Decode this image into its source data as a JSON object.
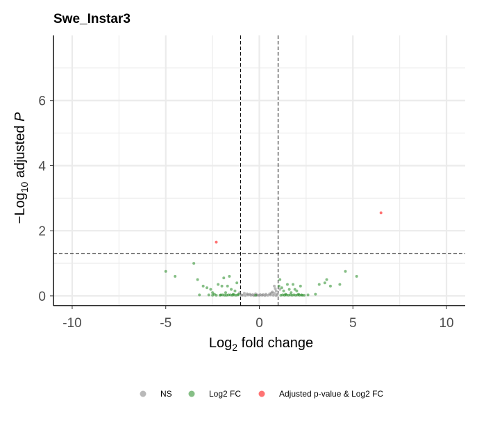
{
  "chart_data": {
    "type": "scatter",
    "title": "Swe_Instar3",
    "xlabel_parts": [
      "Log",
      "2",
      " fold change"
    ],
    "ylabel_parts": [
      "−Log",
      "10",
      " adjusted ",
      "P"
    ],
    "xlim": [
      -11,
      11
    ],
    "ylim": [
      -0.3,
      8.0
    ],
    "x_ticks": [
      -10,
      -5,
      0,
      5,
      10
    ],
    "x_tick_labels": [
      "-10",
      "-5",
      "0",
      "5",
      "10"
    ],
    "y_ticks": [
      0,
      2,
      4,
      6
    ],
    "y_tick_labels": [
      "0",
      "2",
      "4",
      "6"
    ],
    "grid": true,
    "fc_cutoff": 1,
    "p_cutoff_line": 1.3,
    "legend_position": "bottom",
    "series": [
      {
        "name": "NS",
        "color": "#808080",
        "points": [
          [
            -0.9,
            0.02
          ],
          [
            -0.75,
            0.01
          ],
          [
            -0.6,
            0.03
          ],
          [
            -0.45,
            0.02
          ],
          [
            -0.3,
            0.01
          ],
          [
            -0.15,
            0.02
          ],
          [
            0.0,
            0.01
          ],
          [
            0.15,
            0.02
          ],
          [
            0.3,
            0.01
          ],
          [
            0.45,
            0.02
          ],
          [
            0.6,
            0.03
          ],
          [
            0.75,
            0.02
          ],
          [
            0.9,
            0.01
          ],
          [
            -0.5,
            0.05
          ],
          [
            0.2,
            0.04
          ],
          [
            -0.2,
            0.06
          ],
          [
            0.8,
            0.3
          ],
          [
            0.85,
            0.22
          ],
          [
            0.9,
            0.15
          ],
          [
            0.7,
            0.12
          ],
          [
            -0.8,
            0.08
          ],
          [
            -0.35,
            0.04
          ],
          [
            0.55,
            0.06
          ],
          [
            0.35,
            0.05
          ],
          [
            -0.65,
            0.06
          ],
          [
            0.65,
            0.09
          ],
          [
            -0.95,
            0.03
          ],
          [
            0.95,
            0.05
          ],
          [
            -1.05,
            0.1
          ],
          [
            1.1,
            0.2
          ],
          [
            0.8,
            0.08
          ],
          [
            -0.1,
            0.03
          ],
          [
            0.05,
            0.04
          ]
        ]
      },
      {
        "name": "Log2 FC",
        "color": "#228B22",
        "points": [
          [
            -5.0,
            0.75
          ],
          [
            -4.5,
            0.6
          ],
          [
            -3.5,
            1.0
          ],
          [
            -3.3,
            0.5
          ],
          [
            -3.0,
            0.3
          ],
          [
            -2.8,
            0.25
          ],
          [
            -2.6,
            0.2
          ],
          [
            -2.5,
            0.1
          ],
          [
            -2.4,
            0.05
          ],
          [
            -2.2,
            0.35
          ],
          [
            -2.0,
            0.3
          ],
          [
            -1.9,
            0.55
          ],
          [
            -1.8,
            0.1
          ],
          [
            -1.7,
            0.3
          ],
          [
            -1.6,
            0.6
          ],
          [
            -1.5,
            0.2
          ],
          [
            -1.4,
            0.05
          ],
          [
            -1.3,
            0.15
          ],
          [
            -1.2,
            0.4
          ],
          [
            -1.1,
            0.05
          ],
          [
            -2.3,
            0.02
          ],
          [
            -2.1,
            0.02
          ],
          [
            -1.95,
            0.03
          ],
          [
            -1.75,
            0.02
          ],
          [
            -1.55,
            0.03
          ],
          [
            -1.45,
            0.02
          ],
          [
            -1.35,
            0.03
          ],
          [
            -1.25,
            0.02
          ],
          [
            -1.15,
            0.03
          ],
          [
            -1.65,
            0.03
          ],
          [
            -1.85,
            0.02
          ],
          [
            -2.05,
            0.03
          ],
          [
            -2.5,
            0.02
          ],
          [
            -2.7,
            0.03
          ],
          [
            -3.2,
            0.03
          ],
          [
            -0.2,
            0.02
          ],
          [
            1.05,
            0.3
          ],
          [
            1.1,
            0.5
          ],
          [
            1.2,
            0.25
          ],
          [
            1.3,
            0.15
          ],
          [
            1.4,
            0.05
          ],
          [
            1.5,
            0.35
          ],
          [
            1.6,
            0.2
          ],
          [
            1.7,
            0.1
          ],
          [
            1.8,
            0.35
          ],
          [
            1.9,
            0.2
          ],
          [
            2.0,
            0.15
          ],
          [
            2.1,
            0.05
          ],
          [
            2.2,
            0.3
          ],
          [
            2.3,
            0.02
          ],
          [
            1.15,
            0.02
          ],
          [
            1.25,
            0.03
          ],
          [
            1.35,
            0.02
          ],
          [
            1.45,
            0.03
          ],
          [
            1.55,
            0.02
          ],
          [
            1.65,
            0.03
          ],
          [
            1.75,
            0.02
          ],
          [
            1.85,
            0.03
          ],
          [
            1.95,
            0.02
          ],
          [
            2.05,
            0.03
          ],
          [
            2.15,
            0.02
          ],
          [
            2.25,
            0.03
          ],
          [
            2.4,
            0.02
          ],
          [
            2.6,
            0.03
          ],
          [
            3.2,
            0.35
          ],
          [
            3.5,
            0.4
          ],
          [
            3.8,
            0.3
          ],
          [
            4.3,
            0.35
          ],
          [
            4.6,
            0.75
          ],
          [
            5.2,
            0.6
          ],
          [
            3.0,
            0.05
          ],
          [
            3.6,
            0.5
          ]
        ]
      },
      {
        "name": "Adjusted p-value & Log2 FC",
        "color": "#FF0000",
        "points": [
          [
            -2.3,
            1.65
          ],
          [
            6.5,
            2.55
          ]
        ]
      }
    ]
  }
}
